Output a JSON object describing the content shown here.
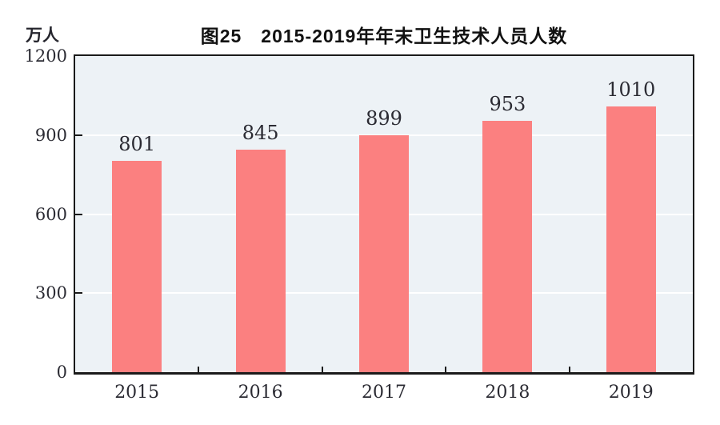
{
  "figure": {
    "title": "图25　2015-2019年年末卫生技术人员人数",
    "unit_label": "万人"
  },
  "chart_data": {
    "type": "bar",
    "title": "图25　2015-2019年年末卫生技术人员人数",
    "ylabel": "万人",
    "xlabel": "",
    "categories": [
      "2015",
      "2016",
      "2017",
      "2018",
      "2019"
    ],
    "values": [
      801,
      845,
      899,
      953,
      1010
    ],
    "ylim": [
      0,
      1200
    ],
    "yticks": [
      0,
      300,
      600,
      900,
      1200
    ],
    "grid": "horizontal gridlines on",
    "legend_position": "none",
    "colors": {
      "bar_fill": "#fb8080",
      "plot_background": "#edf2f6",
      "gridline": "#ffffff",
      "axis_frame": "#1a1a1a",
      "label_text": "#2b2b33"
    }
  }
}
